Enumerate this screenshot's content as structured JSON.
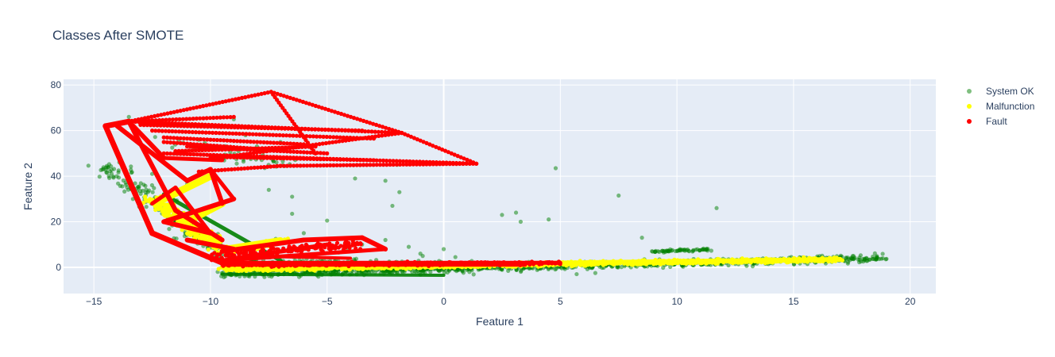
{
  "chart_data": {
    "type": "scatter",
    "title": "Classes After SMOTE",
    "xlabel": "Feature 1",
    "ylabel": "Feature 2",
    "xlim": [
      -16.3,
      21.1
    ],
    "ylim": [
      -11.5,
      82.5
    ],
    "xticks": [
      -15,
      -10,
      -5,
      0,
      5,
      10,
      15,
      20
    ],
    "yticks": [
      0,
      20,
      40,
      60,
      80
    ],
    "xtick_labels": [
      "−15",
      "−10",
      "−5",
      "0",
      "5",
      "10",
      "15",
      "20"
    ],
    "ytick_labels": [
      "0",
      "20",
      "40",
      "60",
      "80"
    ],
    "grid": true,
    "legend_position": "top-right",
    "plot_bg": "#e5ecf6",
    "series": [
      {
        "name": "System OK",
        "color": "#008000",
        "opacity": 0.5,
        "clusters": [
          {
            "shape": "band",
            "from": [
              -9.5,
              -3
            ],
            "to": [
              19,
              4
            ],
            "spread": 1.6,
            "count": 900
          },
          {
            "shape": "band",
            "from": [
              -14.5,
              45
            ],
            "to": [
              -9.5,
              6
            ],
            "spread": 3.0,
            "count": 200
          },
          {
            "shape": "band",
            "from": [
              -9.5,
              2
            ],
            "to": [
              1,
              0
            ],
            "spread": 2.5,
            "count": 350
          },
          {
            "shape": "band",
            "from": [
              9,
              7
            ],
            "to": [
              11.5,
              8
            ],
            "spread": 0.6,
            "count": 60
          },
          {
            "shape": "band",
            "from": [
              -12,
              55
            ],
            "to": [
              -7,
              45
            ],
            "spread": 4,
            "count": 45
          }
        ],
        "lines": [
          {
            "from": [
              -12,
              32
            ],
            "to": [
              -7,
              3
            ],
            "width": 5
          },
          {
            "from": [
              -9.5,
              -3
            ],
            "to": [
              0,
              -3.5
            ],
            "width": 4
          }
        ],
        "points": [
          [
            4.8,
            43.5
          ],
          [
            7.5,
            31.5
          ],
          [
            11.7,
            26
          ],
          [
            8.5,
            13
          ],
          [
            2.5,
            23
          ],
          [
            3.1,
            24
          ],
          [
            3.3,
            20
          ],
          [
            4.5,
            21
          ],
          [
            -2.5,
            38
          ],
          [
            -2.2,
            27
          ],
          [
            -1.9,
            33
          ],
          [
            -2,
            45
          ],
          [
            -5,
            20.5
          ],
          [
            -6,
            15
          ],
          [
            -6.5,
            23.5
          ],
          [
            -6.5,
            31
          ],
          [
            -7.5,
            34
          ],
          [
            -8.5,
            58
          ],
          [
            -9,
            65
          ],
          [
            -7,
            55
          ],
          [
            -4.5,
            6.5
          ],
          [
            -3.5,
            10
          ],
          [
            -2.5,
            12
          ],
          [
            -1.5,
            9
          ],
          [
            -3.2,
            11.5
          ],
          [
            -4.1,
            7.5
          ],
          [
            -1,
            6
          ],
          [
            0,
            8
          ],
          [
            -13.5,
            66
          ],
          [
            -13,
            63
          ],
          [
            -11.5,
            50
          ],
          [
            -6.9,
            46.5
          ],
          [
            -0.9,
            5
          ],
          [
            0.5,
            4.5
          ],
          [
            1.2,
            2.8
          ],
          [
            3.5,
            1.2
          ],
          [
            5.7,
            -3
          ],
          [
            6.5,
            -2.5
          ],
          [
            12.5,
            1.5
          ],
          [
            18.5,
            3.5
          ],
          [
            -3.8,
            39
          ],
          [
            -8.8,
            51
          ],
          [
            -10.5,
            56
          ],
          [
            -12.5,
            41
          ],
          [
            -11,
            36.5
          ],
          [
            -7.2,
            12.5
          ]
        ]
      },
      {
        "name": "Malfunction",
        "color": "#ffff00",
        "opacity": 1,
        "clusters": [
          {
            "shape": "band",
            "from": [
              -9.5,
              -1
            ],
            "to": [
              17,
              3.5
            ],
            "spread": 0.9,
            "count": 1100
          },
          {
            "shape": "band",
            "from": [
              -12.5,
              30
            ],
            "to": [
              -9.5,
              8
            ],
            "spread": 2.0,
            "count": 260
          },
          {
            "shape": "band",
            "from": [
              -9.5,
              7
            ],
            "to": [
              -6.5,
              12
            ],
            "spread": 1.2,
            "count": 80
          }
        ],
        "lines": [
          {
            "from": [
              -9.5,
              0
            ],
            "to": [
              17,
              3.5
            ],
            "width": 6
          },
          {
            "from": [
              -12,
              30
            ],
            "to": [
              -10,
              40
            ],
            "width": 9
          },
          {
            "from": [
              -11,
              20
            ],
            "to": [
              -9.5,
              28
            ],
            "width": 9
          },
          {
            "from": [
              -9.5,
              8
            ],
            "to": [
              -7,
              12
            ],
            "width": 7
          }
        ],
        "points": []
      },
      {
        "name": "Fault",
        "color": "#ff0000",
        "opacity": 1,
        "clusters": [
          {
            "shape": "band",
            "from": [
              -9.5,
              1
            ],
            "to": [
              5,
              2
            ],
            "spread": 0.7,
            "count": 350
          },
          {
            "shape": "band",
            "from": [
              -10,
              5
            ],
            "to": [
              -3.5,
              10
            ],
            "spread": 2.0,
            "count": 150
          }
        ],
        "lines": [
          {
            "from": [
              -14.5,
              62
            ],
            "to": [
              -13.5,
              64
            ],
            "width": 7
          },
          {
            "from": [
              -14.5,
              62
            ],
            "to": [
              -12.5,
              15
            ],
            "width": 7
          },
          {
            "from": [
              -13.5,
              64
            ],
            "to": [
              -12,
              48
            ],
            "width": 6
          },
          {
            "from": [
              -13.5,
              64
            ],
            "to": [
              -11.5,
              25
            ],
            "width": 6
          },
          {
            "from": [
              -14,
              62
            ],
            "to": [
              -11,
              38
            ],
            "width": 6
          },
          {
            "from": [
              -12.5,
              15
            ],
            "to": [
              -9.5,
              2
            ],
            "width": 7
          },
          {
            "from": [
              -11.5,
              25
            ],
            "to": [
              -9.5,
              12
            ],
            "width": 6
          },
          {
            "from": [
              -11,
              38
            ],
            "to": [
              -10,
              43
            ],
            "width": 6
          },
          {
            "from": [
              -10,
              43
            ],
            "to": [
              -9.5,
              28
            ],
            "width": 6
          },
          {
            "from": [
              -10,
              43
            ],
            "to": [
              -9,
              30
            ],
            "width": 5
          },
          {
            "from": [
              -9,
              30
            ],
            "to": [
              -12,
              20
            ],
            "width": 6
          },
          {
            "from": [
              -12,
              20
            ],
            "to": [
              -10,
              15
            ],
            "width": 6
          },
          {
            "from": [
              -10,
              15
            ],
            "to": [
              -11.5,
              35
            ],
            "width": 5
          },
          {
            "from": [
              -11.5,
              35
            ],
            "to": [
              -12.5,
              28
            ],
            "width": 5
          },
          {
            "from": [
              -11,
              12
            ],
            "to": [
              -9,
              8
            ],
            "width": 6
          },
          {
            "from": [
              -9.5,
              7
            ],
            "to": [
              -6,
              12
            ],
            "width": 6
          },
          {
            "from": [
              -6,
              12
            ],
            "to": [
              -3.5,
              13
            ],
            "width": 6
          },
          {
            "from": [
              -3.5,
              13
            ],
            "to": [
              -2.5,
              8
            ],
            "width": 6
          },
          {
            "from": [
              -2.5,
              8
            ],
            "to": [
              -9.5,
              3
            ],
            "width": 5
          },
          {
            "from": [
              -9.5,
              3
            ],
            "to": [
              -5,
              10
            ],
            "width": 5
          },
          {
            "from": [
              -5,
              10
            ],
            "to": [
              -9,
              4
            ],
            "width": 5
          },
          {
            "from": [
              -9.5,
              2
            ],
            "to": [
              5,
              2
            ],
            "width": 5
          },
          {
            "from": [
              -9.5,
              1
            ],
            "to": [
              3.5,
              1
            ],
            "width": 4
          },
          {
            "from": [
              -8.5,
              5
            ],
            "to": [
              -4,
              4
            ],
            "width": 4
          },
          {
            "from": [
              -12,
              48
            ],
            "to": [
              -9.5,
              47
            ],
            "width": 5
          }
        ],
        "dotted": [
          {
            "from": [
              -14.2,
              62.5
            ],
            "to": [
              -7.4,
              77
            ]
          },
          {
            "from": [
              -7.4,
              77
            ],
            "to": [
              -1.8,
              59
            ]
          },
          {
            "from": [
              -1.8,
              59
            ],
            "to": [
              1.4,
              45.5
            ]
          },
          {
            "from": [
              -7.4,
              77
            ],
            "to": [
              -5.5,
              50
            ]
          },
          {
            "from": [
              -13.5,
              64
            ],
            "to": [
              -1.8,
              59
            ]
          },
          {
            "from": [
              -13,
              62.5
            ],
            "to": [
              -3.5,
              60
            ]
          },
          {
            "from": [
              -12.5,
              60
            ],
            "to": [
              -3,
              56.5
            ]
          },
          {
            "from": [
              -12,
              57
            ],
            "to": [
              -6,
              54
            ]
          },
          {
            "from": [
              -12,
              50
            ],
            "to": [
              1.4,
              45.5
            ]
          },
          {
            "from": [
              -10,
              48.5
            ],
            "to": [
              -3,
              47
            ]
          },
          {
            "from": [
              -9,
              49
            ],
            "to": [
              -1.8,
              59
            ]
          },
          {
            "from": [
              -10.5,
              42
            ],
            "to": [
              -7,
              44.5
            ]
          },
          {
            "from": [
              -7,
              44.5
            ],
            "to": [
              1.4,
              45.5
            ]
          },
          {
            "from": [
              -11.5,
              51
            ],
            "to": [
              -5.5,
              53
            ]
          },
          {
            "from": [
              -11,
              53
            ],
            "to": [
              -5,
              50
            ]
          },
          {
            "from": [
              -13.5,
              64
            ],
            "to": [
              -9,
              66
            ]
          },
          {
            "from": [
              -12,
              55
            ],
            "to": [
              -8,
              52
            ]
          }
        ],
        "points": []
      }
    ]
  }
}
